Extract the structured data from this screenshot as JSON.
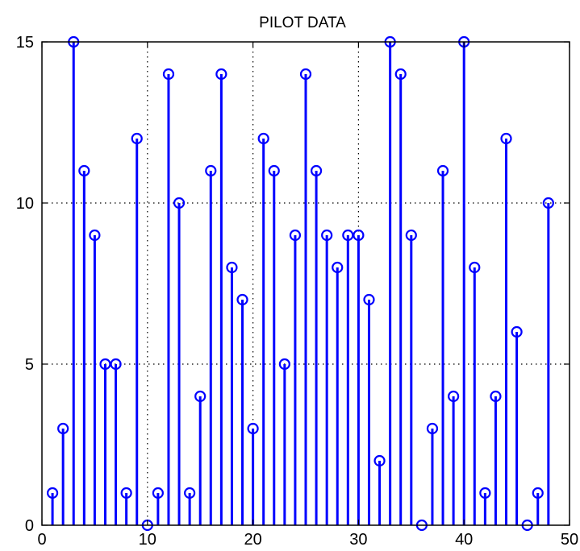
{
  "chart_data": {
    "type": "stem",
    "title": "PILOT DATA",
    "xlabel": "",
    "ylabel": "",
    "xlim": [
      0,
      50
    ],
    "ylim": [
      0,
      15
    ],
    "xticks": [
      0,
      10,
      20,
      30,
      40,
      50
    ],
    "yticks": [
      0,
      5,
      10,
      15
    ],
    "x_tick_labels": [
      "0",
      "10",
      "20",
      "30",
      "40",
      "50"
    ],
    "y_tick_labels": [
      "0",
      "5",
      "10",
      "15"
    ],
    "grid": true,
    "grid_style": "dotted",
    "marker": "circle",
    "color": "#0000ff",
    "x": [
      1,
      2,
      3,
      4,
      5,
      6,
      7,
      8,
      9,
      10,
      11,
      12,
      13,
      14,
      15,
      16,
      17,
      18,
      19,
      20,
      21,
      22,
      23,
      24,
      25,
      26,
      27,
      28,
      29,
      30,
      31,
      32,
      33,
      34,
      35,
      36,
      37,
      38,
      39,
      40,
      41,
      42,
      43,
      44,
      45,
      46,
      47,
      48
    ],
    "values": [
      1,
      3,
      15,
      11,
      9,
      5,
      5,
      1,
      12,
      0,
      1,
      14,
      10,
      1,
      4,
      11,
      14,
      8,
      7,
      3,
      12,
      11,
      5,
      9,
      14,
      11,
      9,
      8,
      9,
      9,
      7,
      2,
      15,
      14,
      9,
      0,
      3,
      11,
      4,
      15,
      8,
      1,
      4,
      12,
      6,
      0,
      1,
      10
    ]
  }
}
